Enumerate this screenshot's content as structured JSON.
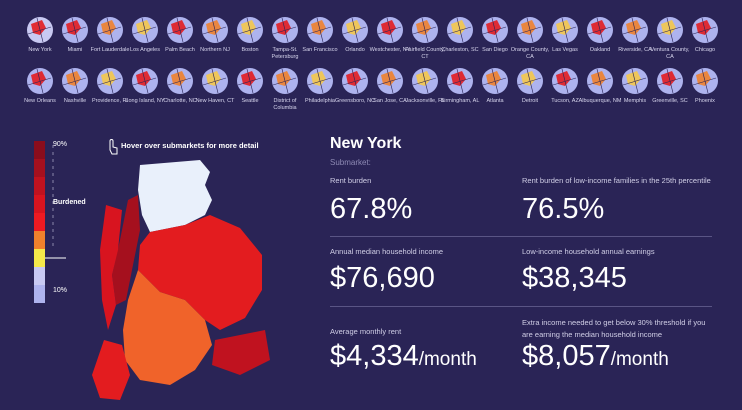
{
  "cities": [
    [
      "New York",
      "Miami",
      "Fort Lauderdale",
      "Los Angeles",
      "Palm Beach",
      "Northern NJ",
      "Boston",
      "Tampa-St. Petersburg",
      "San Francisco",
      "Orlando",
      "Westchester, NY",
      "Fairfield County, CT",
      "Charleston, SC",
      "San Diego",
      "Orange County, CA",
      "Las Vegas",
      "Oakland",
      "Riverside, CA",
      "Ventura County, CA",
      "Chicago"
    ],
    [
      "New Orleans",
      "Nashville",
      "Providence, RI",
      "Long Island, NY",
      "Charlotte, NC",
      "New Haven, CT",
      "Seattle",
      "District of Columbia",
      "Philadelphia",
      "Greensboro, NC",
      "San Jose, CA",
      "Jacksonville, FL",
      "Birmingham, AL",
      "Atlanta",
      "Detroit",
      "Tucson, AZ",
      "Albuquerque, NM",
      "Memphis",
      "Greenville, SC",
      "Phoenix"
    ]
  ],
  "legend": {
    "top": "90%",
    "middle": "Burdened",
    "bottom": "10%"
  },
  "hint": "Hover over submarkets for more detail",
  "detail": {
    "title": "New York",
    "subtitle": "Submarket:",
    "stats": [
      {
        "label": "Rent burden",
        "value": "67.8%"
      },
      {
        "label": "Rent burden of low-income families in the 25th percentile",
        "value": "76.5%"
      },
      {
        "label": "Annual median household income",
        "value": "$76,690"
      },
      {
        "label": "Low-income household annual earnings",
        "value": "$38,345"
      },
      {
        "label": "Average monthly rent",
        "value": "$4,334",
        "unit": "/month"
      },
      {
        "label": "Extra income needed to get below 30% threshold if you are earning the median household income",
        "value": "$8,057",
        "unit": "/month"
      }
    ]
  }
}
